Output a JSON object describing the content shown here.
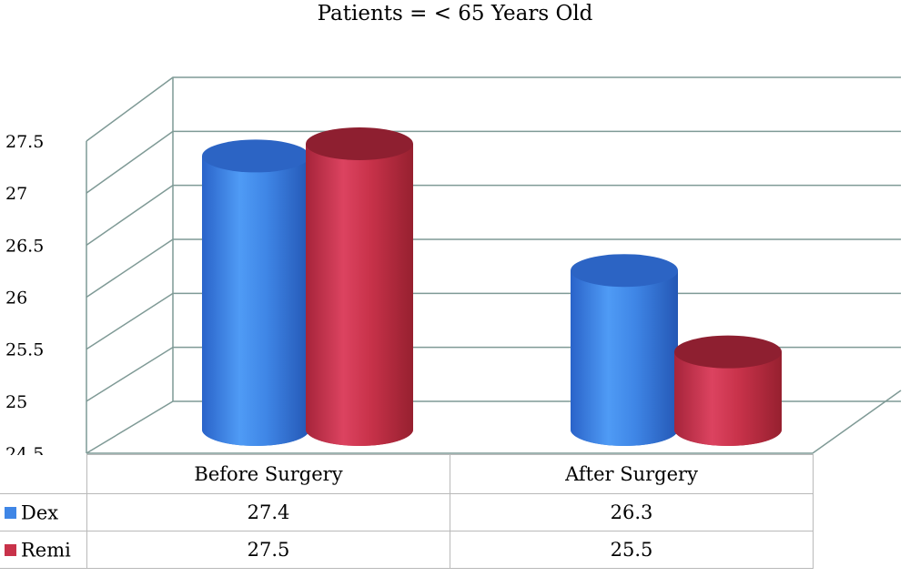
{
  "chart_data": {
    "type": "bar",
    "title": "Patients = < 65 Years Old",
    "categories": [
      "Before Surgery",
      "After Surgery"
    ],
    "series": [
      {
        "name": "Dex",
        "values": [
          27.4,
          26.3
        ],
        "color": "#3f86e6"
      },
      {
        "name": "Remi",
        "values": [
          27.5,
          25.5
        ],
        "color": "#c8324a"
      }
    ],
    "ylim": [
      24.5,
      27.5
    ],
    "yticks": [
      "24.5",
      "25",
      "25.5",
      "26",
      "26.5",
      "27",
      "27.5"
    ],
    "grid": true,
    "legend": "data-table",
    "table": [
      {
        "name": "Dex",
        "values": [
          "27.4",
          "26.3"
        ]
      },
      {
        "name": "Remi",
        "values": [
          "27.5",
          "25.5"
        ]
      }
    ]
  }
}
